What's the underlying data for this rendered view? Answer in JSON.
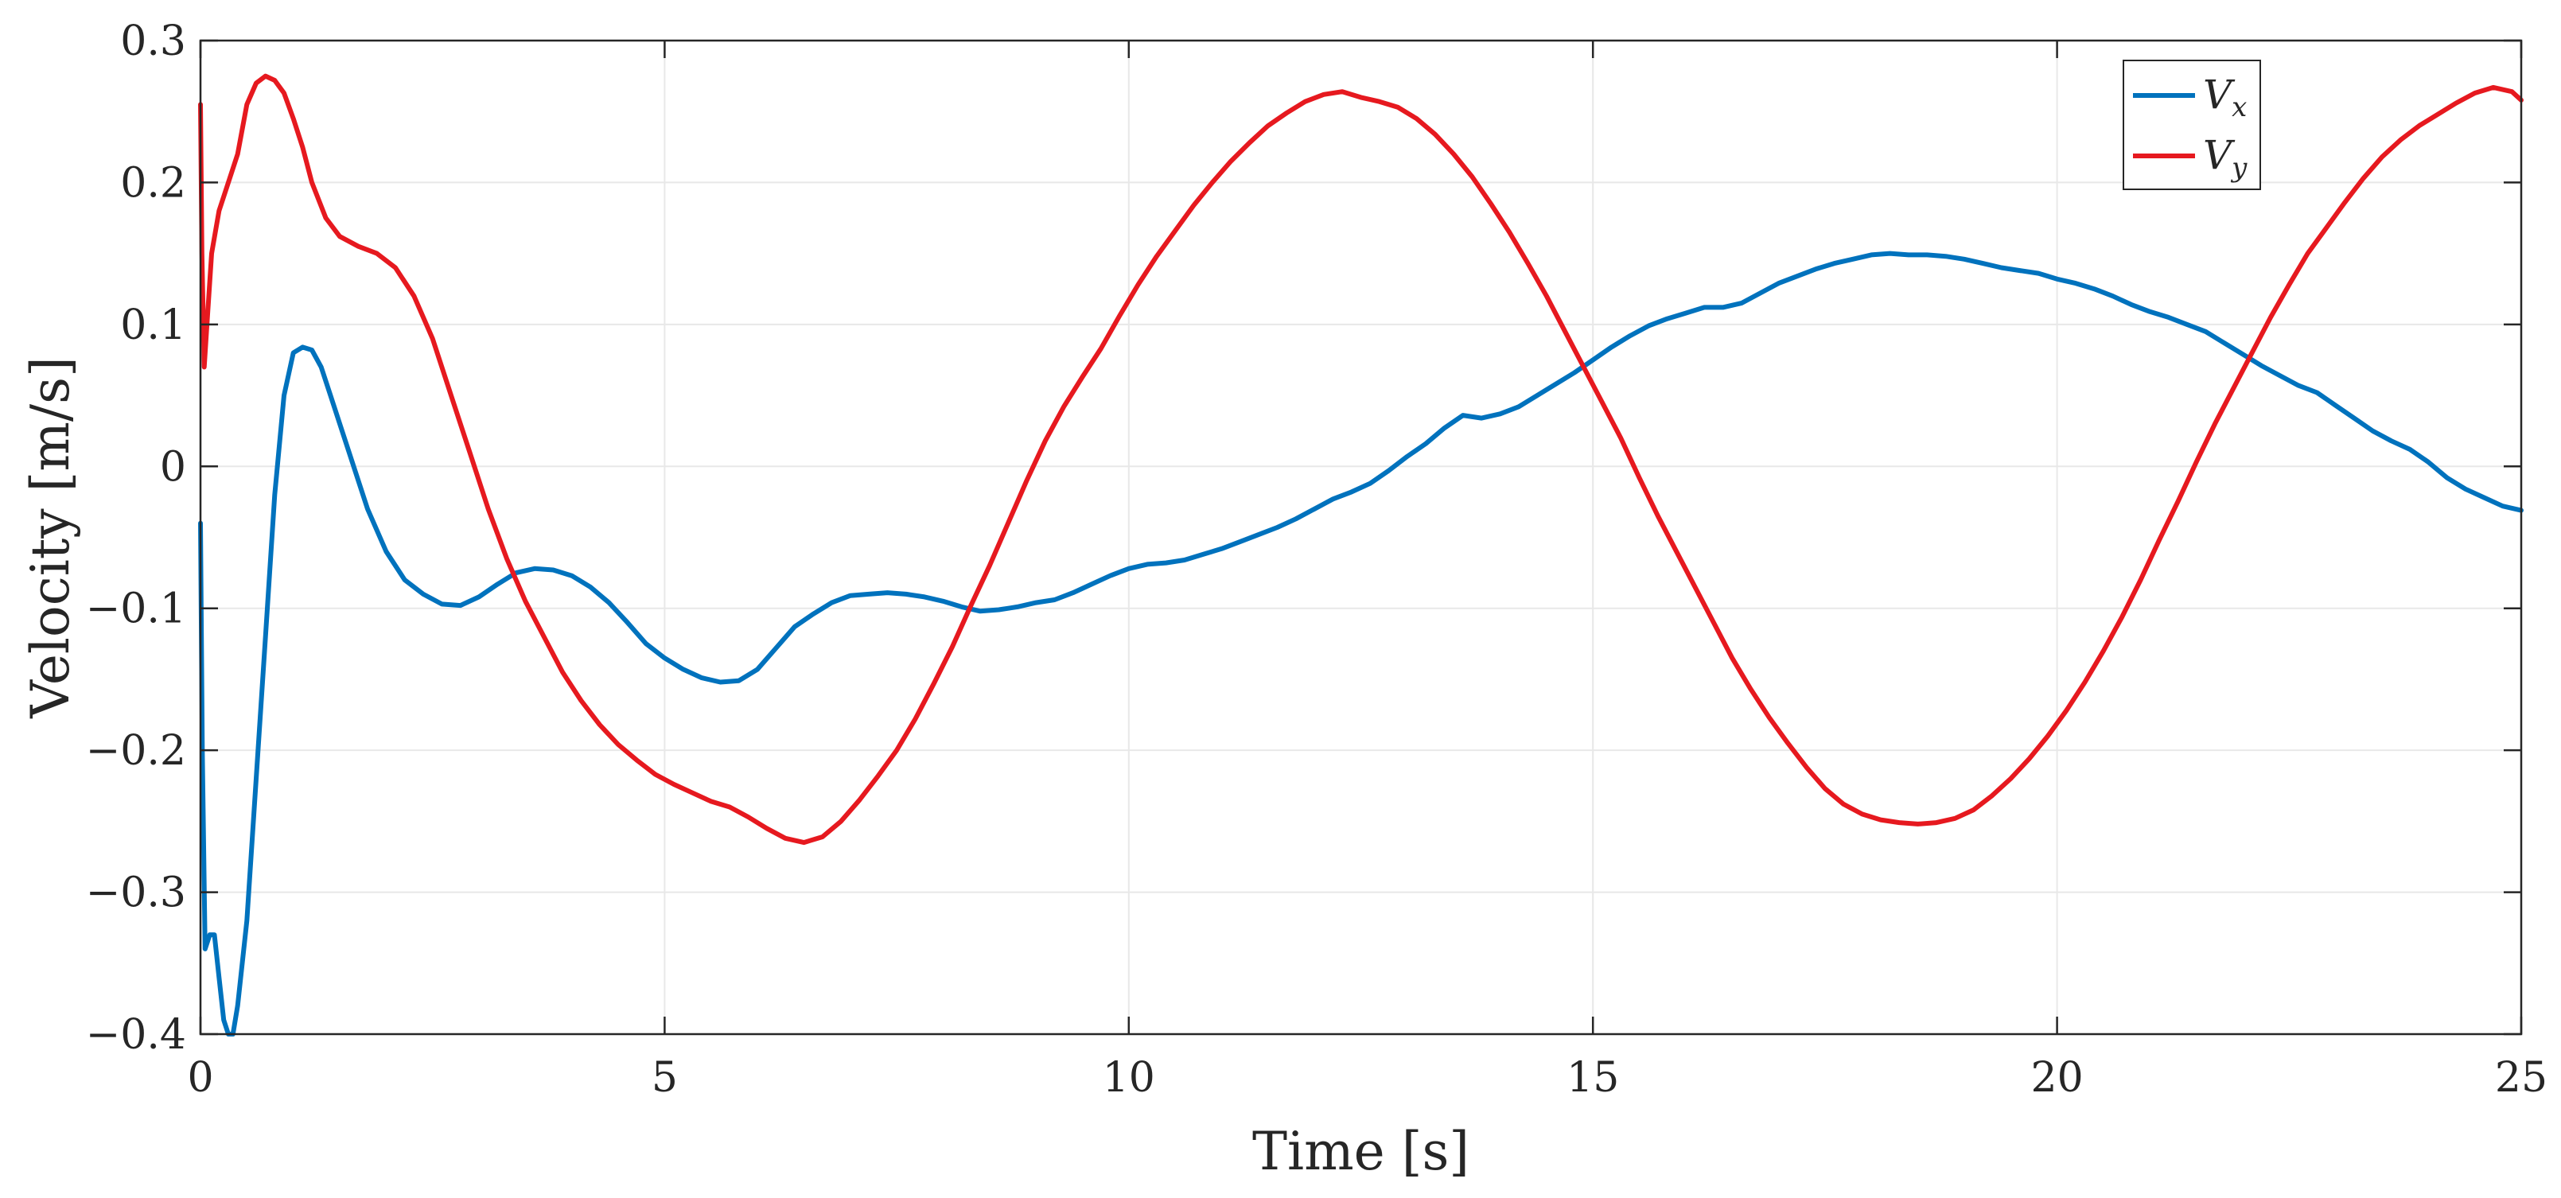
{
  "chart_data": {
    "type": "line",
    "title": "",
    "xlabel": "Time [s]",
    "ylabel": "Velocity [m/s]",
    "xlim": [
      0,
      25
    ],
    "ylim": [
      -0.4,
      0.3
    ],
    "xticks": [
      0,
      5,
      10,
      15,
      20,
      25
    ],
    "xtick_labels": [
      "0",
      "5",
      "10",
      "15",
      "20",
      "25"
    ],
    "yticks": [
      -0.4,
      -0.3,
      -0.2,
      -0.1,
      0,
      0.1,
      0.2,
      0.3
    ],
    "ytick_labels": [
      "−0.4",
      "−0.3",
      "−0.2",
      "−0.1",
      "0",
      "0.1",
      "0.2",
      "0.3"
    ],
    "grid": true,
    "legend_position": "top-right",
    "colors": {
      "Vx": "#0072BD",
      "Vy": "#E6191F",
      "axes": "#262626",
      "grid": "#E8E8E8"
    },
    "series": [
      {
        "name": "Vx",
        "legend_main": "V",
        "legend_sub": "x",
        "color": "#0072BD",
        "points": [
          [
            0,
            -0.04
          ],
          [
            0.02,
            -0.2
          ],
          [
            0.05,
            -0.34
          ],
          [
            0.1,
            -0.33
          ],
          [
            0.15,
            -0.33
          ],
          [
            0.2,
            -0.36
          ],
          [
            0.25,
            -0.39
          ],
          [
            0.3,
            -0.4
          ],
          [
            0.35,
            -0.4
          ],
          [
            0.4,
            -0.38
          ],
          [
            0.5,
            -0.32
          ],
          [
            0.6,
            -0.22
          ],
          [
            0.7,
            -0.12
          ],
          [
            0.8,
            -0.02
          ],
          [
            0.9,
            0.05
          ],
          [
            1.0,
            0.08
          ],
          [
            1.1,
            0.084
          ],
          [
            1.2,
            0.082
          ],
          [
            1.3,
            0.07
          ],
          [
            1.4,
            0.05
          ],
          [
            1.6,
            0.01
          ],
          [
            1.8,
            -0.03
          ],
          [
            2.0,
            -0.06
          ],
          [
            2.2,
            -0.08
          ],
          [
            2.4,
            -0.09
          ],
          [
            2.6,
            -0.097
          ],
          [
            2.8,
            -0.098
          ],
          [
            3.0,
            -0.092
          ],
          [
            3.2,
            -0.083
          ],
          [
            3.4,
            -0.075
          ],
          [
            3.6,
            -0.072
          ],
          [
            3.8,
            -0.073
          ],
          [
            4.0,
            -0.077
          ],
          [
            4.2,
            -0.085
          ],
          [
            4.4,
            -0.096
          ],
          [
            4.6,
            -0.11
          ],
          [
            4.8,
            -0.125
          ],
          [
            5.0,
            -0.135
          ],
          [
            5.2,
            -0.143
          ],
          [
            5.4,
            -0.149
          ],
          [
            5.6,
            -0.152
          ],
          [
            5.8,
            -0.151
          ],
          [
            6.0,
            -0.143
          ],
          [
            6.2,
            -0.128
          ],
          [
            6.4,
            -0.113
          ],
          [
            6.6,
            -0.104
          ],
          [
            6.8,
            -0.096
          ],
          [
            7.0,
            -0.091
          ],
          [
            7.2,
            -0.09
          ],
          [
            7.4,
            -0.089
          ],
          [
            7.6,
            -0.09
          ],
          [
            7.8,
            -0.092
          ],
          [
            8.0,
            -0.095
          ],
          [
            8.2,
            -0.099
          ],
          [
            8.4,
            -0.102
          ],
          [
            8.6,
            -0.101
          ],
          [
            8.8,
            -0.099
          ],
          [
            9.0,
            -0.096
          ],
          [
            9.2,
            -0.094
          ],
          [
            9.4,
            -0.089
          ],
          [
            9.6,
            -0.083
          ],
          [
            9.8,
            -0.077
          ],
          [
            10.0,
            -0.072
          ],
          [
            10.2,
            -0.069
          ],
          [
            10.4,
            -0.068
          ],
          [
            10.6,
            -0.066
          ],
          [
            10.8,
            -0.062
          ],
          [
            11.0,
            -0.058
          ],
          [
            11.2,
            -0.053
          ],
          [
            11.4,
            -0.048
          ],
          [
            11.6,
            -0.043
          ],
          [
            11.8,
            -0.037
          ],
          [
            12.0,
            -0.03
          ],
          [
            12.2,
            -0.023
          ],
          [
            12.4,
            -0.018
          ],
          [
            12.6,
            -0.012
          ],
          [
            12.8,
            -0.003
          ],
          [
            13.0,
            0.007
          ],
          [
            13.2,
            0.016
          ],
          [
            13.4,
            0.027
          ],
          [
            13.6,
            0.036
          ],
          [
            13.8,
            0.034
          ],
          [
            14.0,
            0.037
          ],
          [
            14.2,
            0.042
          ],
          [
            14.4,
            0.05
          ],
          [
            14.6,
            0.058
          ],
          [
            14.8,
            0.066
          ],
          [
            15.0,
            0.075
          ],
          [
            15.2,
            0.084
          ],
          [
            15.4,
            0.092
          ],
          [
            15.6,
            0.099
          ],
          [
            15.8,
            0.104
          ],
          [
            16.0,
            0.108
          ],
          [
            16.2,
            0.112
          ],
          [
            16.4,
            0.112
          ],
          [
            16.6,
            0.115
          ],
          [
            16.8,
            0.122
          ],
          [
            17.0,
            0.129
          ],
          [
            17.2,
            0.134
          ],
          [
            17.4,
            0.139
          ],
          [
            17.6,
            0.143
          ],
          [
            17.8,
            0.146
          ],
          [
            18.0,
            0.149
          ],
          [
            18.2,
            0.15
          ],
          [
            18.4,
            0.149
          ],
          [
            18.6,
            0.149
          ],
          [
            18.8,
            0.148
          ],
          [
            19.0,
            0.146
          ],
          [
            19.2,
            0.143
          ],
          [
            19.4,
            0.14
          ],
          [
            19.6,
            0.138
          ],
          [
            19.8,
            0.136
          ],
          [
            20.0,
            0.132
          ],
          [
            20.2,
            0.129
          ],
          [
            20.4,
            0.125
          ],
          [
            20.6,
            0.12
          ],
          [
            20.8,
            0.114
          ],
          [
            21.0,
            0.109
          ],
          [
            21.2,
            0.105
          ],
          [
            21.4,
            0.1
          ],
          [
            21.6,
            0.095
          ],
          [
            21.8,
            0.087
          ],
          [
            22.0,
            0.079
          ],
          [
            22.2,
            0.071
          ],
          [
            22.4,
            0.064
          ],
          [
            22.6,
            0.057
          ],
          [
            22.8,
            0.052
          ],
          [
            23.0,
            0.043
          ],
          [
            23.2,
            0.034
          ],
          [
            23.4,
            0.025
          ],
          [
            23.6,
            0.018
          ],
          [
            23.8,
            0.012
          ],
          [
            24.0,
            0.003
          ],
          [
            24.2,
            -0.008
          ],
          [
            24.4,
            -0.016
          ],
          [
            24.6,
            -0.022
          ],
          [
            24.8,
            -0.028
          ],
          [
            25.0,
            -0.031
          ]
        ]
      },
      {
        "name": "Vy",
        "legend_main": "V",
        "legend_sub": "y",
        "color": "#E6191F",
        "points": [
          [
            0,
            0.255
          ],
          [
            0.015,
            0.15
          ],
          [
            0.04,
            0.07
          ],
          [
            0.08,
            0.11
          ],
          [
            0.12,
            0.15
          ],
          [
            0.2,
            0.18
          ],
          [
            0.3,
            0.2
          ],
          [
            0.4,
            0.22
          ],
          [
            0.5,
            0.255
          ],
          [
            0.6,
            0.27
          ],
          [
            0.7,
            0.275
          ],
          [
            0.8,
            0.272
          ],
          [
            0.9,
            0.263
          ],
          [
            1.0,
            0.245
          ],
          [
            1.1,
            0.225
          ],
          [
            1.2,
            0.2
          ],
          [
            1.35,
            0.175
          ],
          [
            1.5,
            0.162
          ],
          [
            1.7,
            0.155
          ],
          [
            1.9,
            0.15
          ],
          [
            2.1,
            0.14
          ],
          [
            2.3,
            0.12
          ],
          [
            2.5,
            0.09
          ],
          [
            2.7,
            0.05
          ],
          [
            2.9,
            0.01
          ],
          [
            3.1,
            -0.03
          ],
          [
            3.3,
            -0.065
          ],
          [
            3.5,
            -0.095
          ],
          [
            3.7,
            -0.12
          ],
          [
            3.9,
            -0.145
          ],
          [
            4.1,
            -0.165
          ],
          [
            4.3,
            -0.182
          ],
          [
            4.5,
            -0.196
          ],
          [
            4.7,
            -0.207
          ],
          [
            4.9,
            -0.217
          ],
          [
            5.1,
            -0.224
          ],
          [
            5.3,
            -0.23
          ],
          [
            5.5,
            -0.236
          ],
          [
            5.7,
            -0.24
          ],
          [
            5.9,
            -0.247
          ],
          [
            6.1,
            -0.255
          ],
          [
            6.3,
            -0.262
          ],
          [
            6.5,
            -0.265
          ],
          [
            6.7,
            -0.261
          ],
          [
            6.9,
            -0.25
          ],
          [
            7.1,
            -0.235
          ],
          [
            7.3,
            -0.218
          ],
          [
            7.5,
            -0.2
          ],
          [
            7.7,
            -0.178
          ],
          [
            7.9,
            -0.153
          ],
          [
            8.1,
            -0.127
          ],
          [
            8.3,
            -0.098
          ],
          [
            8.5,
            -0.07
          ],
          [
            8.7,
            -0.04
          ],
          [
            8.9,
            -0.01
          ],
          [
            9.1,
            0.018
          ],
          [
            9.3,
            0.042
          ],
          [
            9.5,
            0.063
          ],
          [
            9.7,
            0.083
          ],
          [
            9.9,
            0.106
          ],
          [
            10.1,
            0.128
          ],
          [
            10.3,
            0.148
          ],
          [
            10.5,
            0.166
          ],
          [
            10.7,
            0.184
          ],
          [
            10.9,
            0.2
          ],
          [
            11.1,
            0.215
          ],
          [
            11.3,
            0.228
          ],
          [
            11.5,
            0.24
          ],
          [
            11.7,
            0.249
          ],
          [
            11.9,
            0.257
          ],
          [
            12.1,
            0.262
          ],
          [
            12.3,
            0.264
          ],
          [
            12.5,
            0.26
          ],
          [
            12.7,
            0.257
          ],
          [
            12.9,
            0.253
          ],
          [
            13.1,
            0.245
          ],
          [
            13.3,
            0.234
          ],
          [
            13.5,
            0.22
          ],
          [
            13.7,
            0.204
          ],
          [
            13.9,
            0.185
          ],
          [
            14.1,
            0.165
          ],
          [
            14.3,
            0.143
          ],
          [
            14.5,
            0.12
          ],
          [
            14.7,
            0.095
          ],
          [
            14.9,
            0.07
          ],
          [
            15.1,
            0.045
          ],
          [
            15.3,
            0.02
          ],
          [
            15.5,
            -0.008
          ],
          [
            15.7,
            -0.035
          ],
          [
            15.9,
            -0.06
          ],
          [
            16.1,
            -0.085
          ],
          [
            16.3,
            -0.11
          ],
          [
            16.5,
            -0.135
          ],
          [
            16.7,
            -0.157
          ],
          [
            16.9,
            -0.177
          ],
          [
            17.1,
            -0.195
          ],
          [
            17.3,
            -0.212
          ],
          [
            17.5,
            -0.227
          ],
          [
            17.7,
            -0.238
          ],
          [
            17.9,
            -0.245
          ],
          [
            18.1,
            -0.249
          ],
          [
            18.3,
            -0.251
          ],
          [
            18.5,
            -0.252
          ],
          [
            18.7,
            -0.251
          ],
          [
            18.9,
            -0.248
          ],
          [
            19.1,
            -0.242
          ],
          [
            19.3,
            -0.232
          ],
          [
            19.5,
            -0.22
          ],
          [
            19.7,
            -0.206
          ],
          [
            19.9,
            -0.19
          ],
          [
            20.1,
            -0.172
          ],
          [
            20.3,
            -0.152
          ],
          [
            20.5,
            -0.13
          ],
          [
            20.7,
            -0.106
          ],
          [
            20.9,
            -0.08
          ],
          [
            21.1,
            -0.052
          ],
          [
            21.3,
            -0.025
          ],
          [
            21.5,
            0.003
          ],
          [
            21.7,
            0.03
          ],
          [
            21.9,
            0.055
          ],
          [
            22.1,
            0.08
          ],
          [
            22.3,
            0.105
          ],
          [
            22.5,
            0.128
          ],
          [
            22.7,
            0.15
          ],
          [
            22.9,
            0.168
          ],
          [
            23.1,
            0.186
          ],
          [
            23.3,
            0.203
          ],
          [
            23.5,
            0.218
          ],
          [
            23.7,
            0.23
          ],
          [
            23.9,
            0.24
          ],
          [
            24.1,
            0.248
          ],
          [
            24.3,
            0.256
          ],
          [
            24.5,
            0.263
          ],
          [
            24.7,
            0.267
          ],
          [
            24.9,
            0.264
          ],
          [
            25.0,
            0.258
          ]
        ]
      }
    ]
  }
}
